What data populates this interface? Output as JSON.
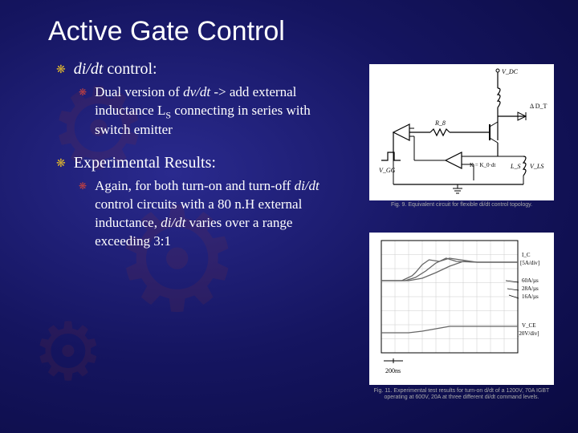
{
  "title": "Active Gate Control",
  "bullets": {
    "b1": {
      "text_prefix": "di/dt",
      "text_suffix": " control:"
    },
    "b1_sub": {
      "line1": "Dual version of ",
      "dvdt": "dv/dt",
      "line1b": " -> add external inductance L",
      "sub": "S",
      "line2": " connecting in series with switch emitter"
    },
    "b2": {
      "text": "Experimental Results:"
    },
    "b2_sub": {
      "line1": "Again, for both turn-on and turn-off ",
      "didt1": "di/dt",
      "line2": " control circuits with a 80 n.H external inductance, ",
      "didt2": "di/dt",
      "line3": " varies over a range exceeding 3:1"
    }
  },
  "circuit": {
    "labels": {
      "vdc": "V_DC",
      "r8": "R_8",
      "vgg": "V_GG",
      "di": "Δ D_T",
      "ls": "L_S",
      "vls": "V_LS"
    },
    "caption": "Fig. 9. Equivalent circuit for flexible di/dt control topology.",
    "colors": {
      "stroke": "#000000",
      "bg": "#ffffff"
    }
  },
  "chart": {
    "caption": "Fig. 11. Experimental test results for turn-on d/dt of a 1200V, 70A IGBT operating at 600V, 20A at three different di/dt command levels.",
    "title": "",
    "xlabel_marker": "200ns",
    "series_labels": [
      "I_C [5A/div]",
      "60A/µs",
      "28A/µs",
      "16A/µs",
      "V_CE [20V/div]"
    ],
    "colors": {
      "grid": "#cccccc",
      "line": "#666666",
      "bg": "#ffffff",
      "text": "#000000"
    },
    "grid": {
      "rows": 8,
      "cols": 10
    },
    "traces": {
      "ic_60": [
        [
          0,
          50
        ],
        [
          30,
          50
        ],
        [
          45,
          44
        ],
        [
          50,
          40
        ],
        [
          60,
          30
        ],
        [
          70,
          24
        ],
        [
          85,
          26
        ],
        [
          100,
          22
        ],
        [
          140,
          27
        ],
        [
          200,
          27
        ]
      ],
      "ic_28": [
        [
          0,
          50
        ],
        [
          35,
          50
        ],
        [
          50,
          46
        ],
        [
          65,
          38
        ],
        [
          80,
          28
        ],
        [
          95,
          22
        ],
        [
          110,
          26
        ],
        [
          140,
          27
        ],
        [
          200,
          27
        ]
      ],
      "ic_16": [
        [
          0,
          50
        ],
        [
          40,
          50
        ],
        [
          60,
          47
        ],
        [
          80,
          40
        ],
        [
          100,
          32
        ],
        [
          120,
          26
        ],
        [
          140,
          27
        ],
        [
          200,
          27
        ]
      ],
      "vce": [
        [
          0,
          115
        ],
        [
          40,
          115
        ],
        [
          60,
          113
        ],
        [
          80,
          110
        ],
        [
          100,
          107
        ],
        [
          200,
          107
        ]
      ]
    }
  }
}
